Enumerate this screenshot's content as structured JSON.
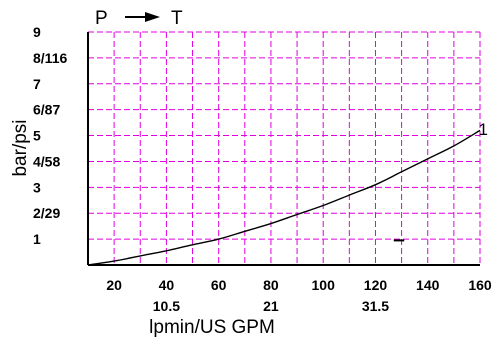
{
  "chart_data": {
    "type": "line",
    "title": "",
    "flow": {
      "from": "P",
      "to": "T"
    },
    "xlabel": "lpmin/US GPM",
    "ylabel": "bar/psi",
    "xlim": [
      10,
      160
    ],
    "ylim": [
      0,
      9
    ],
    "x_ticks": [
      {
        "value": 20,
        "label": "20"
      },
      {
        "value": 40,
        "label": "40"
      },
      {
        "value": 60,
        "label": "60"
      },
      {
        "value": 80,
        "label": "80"
      },
      {
        "value": 100,
        "label": "100"
      },
      {
        "value": 120,
        "label": "120"
      },
      {
        "value": 140,
        "label": "140"
      },
      {
        "value": 160,
        "label": "160"
      }
    ],
    "x_secondary_ticks": [
      {
        "value": 40,
        "label": "10.5"
      },
      {
        "value": 80,
        "label": "21"
      },
      {
        "value": 120,
        "label": "31.5"
      }
    ],
    "y_ticks": [
      {
        "value": 1,
        "label": "1"
      },
      {
        "value": 2,
        "label": "2/29"
      },
      {
        "value": 3,
        "label": "3"
      },
      {
        "value": 4,
        "label": "4/58"
      },
      {
        "value": 5,
        "label": "5"
      },
      {
        "value": 6,
        "label": "6/87"
      },
      {
        "value": 7,
        "label": "7"
      },
      {
        "value": 8,
        "label": "8/116"
      },
      {
        "value": 9,
        "label": "9"
      }
    ],
    "grid": true,
    "grid_color": "#e000e0",
    "series": [
      {
        "name": "1",
        "color": "#000000",
        "x": [
          10,
          20,
          30,
          40,
          50,
          60,
          70,
          80,
          90,
          100,
          110,
          120,
          130,
          140,
          150,
          160
        ],
        "y": [
          0.0,
          0.15,
          0.35,
          0.55,
          0.78,
          1.0,
          1.3,
          1.6,
          1.95,
          2.3,
          2.7,
          3.1,
          3.6,
          4.1,
          4.6,
          5.2
        ]
      }
    ],
    "annotations": [
      {
        "x": [
          127,
          131
        ],
        "y": 0.95
      }
    ]
  }
}
